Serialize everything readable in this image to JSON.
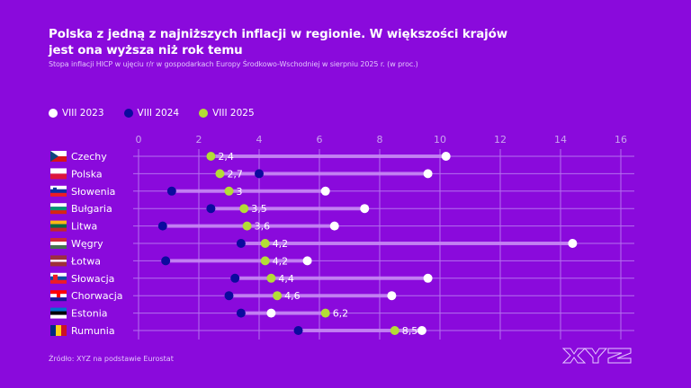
{
  "header": {
    "title": "Polska z jedną z najniższych inflacji w regionie. W większości krajów jest ona wyższa niż rok temu",
    "subtitle": "Stopa inflacji HICP w ujęciu r/r w gospodarkach Europy Środkowo-Wschodniej w sierpniu 2025 r. (w  proc.)"
  },
  "footer": {
    "source": "Źródło: XYZ na podstawie Eurostat",
    "logo_text": "XYZ"
  },
  "colors": {
    "background": "#8a0adc",
    "series_2023": "#ffffff",
    "series_2024": "#0c0a9e",
    "series_2025": "#b3dd36"
  },
  "chart_data": {
    "type": "dot-range",
    "title": "Polska z jedną z najniższych inflacji w regionie. W większości krajów jest ona wyższa niż rok temu",
    "subtitle": "Stopa inflacji HICP w ujęciu r/r w gospodarkach Europy Środkowo-Wschodniej w sierpniu 2025 r. (w  proc.)",
    "xlabel": "",
    "ylabel": "",
    "xlim": [
      0,
      16
    ],
    "xticks": [
      "0",
      "2",
      "4",
      "6",
      "8",
      "10",
      "12",
      "14",
      "16"
    ],
    "grid": true,
    "legend_position": "top-left",
    "categories": [
      "Czechy",
      "Polska",
      "Słowenia",
      "Bułgaria",
      "Litwa",
      "Węgry",
      "Łotwa",
      "Słowacja",
      "Chorwacja",
      "Estonia",
      "Rumunia"
    ],
    "flags": [
      "cz",
      "pl",
      "si",
      "bg",
      "lt",
      "hu",
      "lv",
      "sk",
      "hr",
      "ee",
      "ro"
    ],
    "series": [
      {
        "name": "VIII 2023",
        "color": "#ffffff",
        "values": [
          10.2,
          9.6,
          6.2,
          7.5,
          6.5,
          14.4,
          5.6,
          9.6,
          8.4,
          4.4,
          9.4
        ]
      },
      {
        "name": "VIII 2024",
        "color": "#0c0a9e",
        "values": [
          2.4,
          4.0,
          1.1,
          2.4,
          0.8,
          3.4,
          0.9,
          3.2,
          3.0,
          3.4,
          5.3
        ]
      },
      {
        "name": "VIII 2025",
        "color": "#b3dd36",
        "values": [
          2.4,
          2.7,
          3.0,
          3.5,
          3.6,
          4.2,
          4.2,
          4.4,
          4.6,
          6.2,
          8.5
        ]
      }
    ],
    "data_labels": [
      "2,4",
      "2,7",
      "3",
      "3,5",
      "3,6",
      "4,2",
      "4,2",
      "4,4",
      "4,6",
      "6,2",
      "8,5"
    ]
  }
}
